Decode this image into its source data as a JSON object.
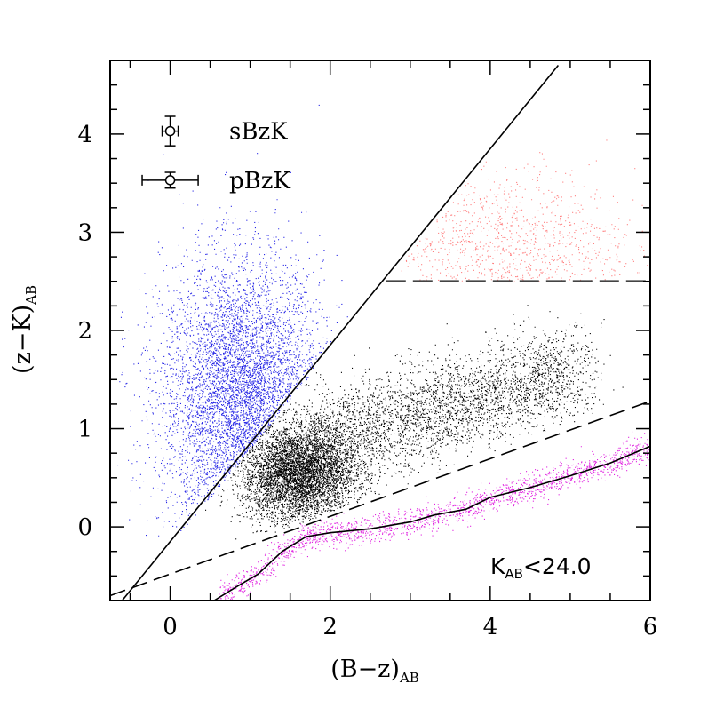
{
  "chart_data": {
    "type": "scatter",
    "xlabel": "(B−z)",
    "xlabel_sub": "AB",
    "ylabel": "(z−K)",
    "ylabel_sub": "AB",
    "xlim": [
      -0.75,
      6.0
    ],
    "ylim": [
      -0.75,
      4.75
    ],
    "xticks_major": [
      0,
      2,
      4,
      6
    ],
    "xtick_labels": [
      "0",
      "2",
      "4",
      "6"
    ],
    "xticks_minor_step": 0.5,
    "yticks_major": [
      0,
      1,
      2,
      3,
      4
    ],
    "ytick_labels": [
      "0",
      "1",
      "2",
      "3",
      "4"
    ],
    "yticks_minor_step": 0.25,
    "grid": false,
    "annotation": {
      "text": "K",
      "sub": "AB",
      "rest": "<24.0"
    },
    "legend": {
      "placement": "top-left",
      "entries": [
        {
          "label": "sBzK",
          "x": 0.0,
          "y": 4.03,
          "xerr": 0.1,
          "yerr": 0.15
        },
        {
          "label": "pBzK",
          "x": 0.0,
          "y": 3.53,
          "xerr": 0.35,
          "yerr": 0.08
        }
      ]
    },
    "lines": [
      {
        "name": "sBzK-boundary",
        "style": "solid",
        "points": [
          [
            -0.75,
            -0.9
          ],
          [
            4.85,
            4.7
          ]
        ]
      },
      {
        "name": "pBzK-boundary",
        "style": "dashed",
        "points": [
          [
            2.7,
            2.5
          ],
          [
            6.0,
            2.5
          ]
        ]
      },
      {
        "name": "star-boundary",
        "style": "dashed",
        "points": [
          [
            -0.75,
            -0.7
          ],
          [
            6.0,
            1.28
          ]
        ]
      },
      {
        "name": "stellar-locus",
        "style": "solid",
        "points": [
          [
            0.55,
            -0.75
          ],
          [
            0.85,
            -0.6
          ],
          [
            1.1,
            -0.48
          ],
          [
            1.4,
            -0.25
          ],
          [
            1.7,
            -0.1
          ],
          [
            2.0,
            -0.06
          ],
          [
            2.5,
            -0.02
          ],
          [
            3.0,
            0.05
          ],
          [
            3.3,
            0.12
          ],
          [
            3.7,
            0.18
          ],
          [
            4.0,
            0.3
          ],
          [
            4.5,
            0.4
          ],
          [
            5.0,
            0.52
          ],
          [
            5.5,
            0.65
          ],
          [
            6.0,
            0.82
          ]
        ]
      }
    ],
    "series": [
      {
        "color": "#2626e6",
        "region": "sBzK",
        "center": [
          0.9,
          1.3
        ],
        "spread": [
          0.5,
          0.7
        ],
        "count": 5000
      },
      {
        "color": "#ff8080",
        "region": "pBzK",
        "center": [
          4.1,
          2.85
        ],
        "spread": [
          0.85,
          0.4
        ],
        "count": 900
      },
      {
        "color": "#000000",
        "region": "galaxies-core",
        "center": [
          1.6,
          0.55
        ],
        "spread": [
          0.35,
          0.25
        ],
        "count": 5200
      },
      {
        "color": "#000000",
        "region": "galaxies-tail",
        "from": [
          1.8,
          0.85
        ],
        "to": [
          5.1,
          1.6
        ],
        "spread": [
          0.35,
          0.25
        ],
        "count": 3400
      },
      {
        "color": "#e020e0",
        "region": "stars",
        "center": [
          3.2,
          0.1
        ],
        "spread": [
          1.5,
          0.07
        ],
        "count": 1800
      }
    ],
    "colors": {
      "axis": "#000000",
      "sbzk": "#2626e6",
      "pbzk": "#ff8080",
      "galaxies": "#000000",
      "stars": "#e020e0"
    }
  }
}
